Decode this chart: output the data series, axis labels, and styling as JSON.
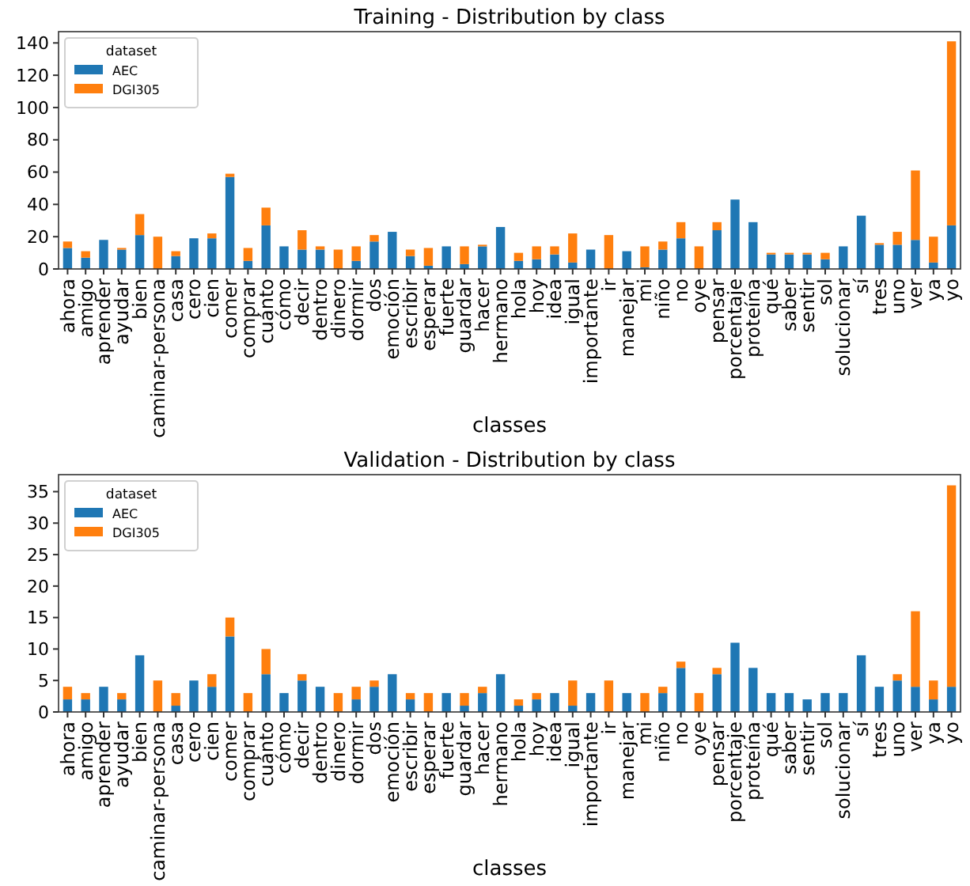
{
  "chart_data": [
    {
      "type": "bar",
      "title": "Training - Distribution by class",
      "xlabel": "classes",
      "legend_title": "dataset",
      "legend": "top left",
      "stacked": true,
      "grid": false,
      "categories": [
        "ahora",
        "amigo",
        "aprender",
        "ayudar",
        "bien",
        "caminar-persona",
        "casa",
        "cero",
        "cien",
        "comer",
        "comprar",
        "cuánto",
        "cómo",
        "decir",
        "dentro",
        "dinero",
        "dormir",
        "dos",
        "emoción",
        "escribir",
        "esperar",
        "fuerte",
        "guardar",
        "hacer",
        "hermano",
        "hola",
        "hoy",
        "idea",
        "igual",
        "importante",
        "ir",
        "manejar",
        "mi",
        "niño",
        "no",
        "oye",
        "pensar",
        "porcentaje",
        "proteína",
        "qué",
        "saber",
        "sentir",
        "sol",
        "solucionar",
        "sí",
        "tres",
        "uno",
        "ver",
        "ya",
        "yo"
      ],
      "series": [
        {
          "name": "AEC",
          "color": "#1f77b4",
          "values": [
            13,
            7,
            18,
            12,
            21,
            0,
            8,
            19,
            19,
            57,
            5,
            27,
            14,
            12,
            12,
            0,
            5,
            17,
            23,
            8,
            2,
            14,
            3,
            14,
            26,
            5,
            6,
            9,
            4,
            12,
            0,
            11,
            1,
            12,
            19,
            0,
            24,
            43,
            29,
            9,
            9,
            9,
            6,
            14,
            33,
            15,
            15,
            18,
            4,
            27
          ]
        },
        {
          "name": "DGI305",
          "color": "#ff7f0e",
          "values": [
            4,
            4,
            0,
            1,
            13,
            20,
            3,
            0,
            3,
            2,
            8,
            11,
            0,
            12,
            2,
            12,
            9,
            4,
            0,
            4,
            11,
            0,
            11,
            1,
            0,
            5,
            8,
            5,
            18,
            0,
            21,
            0,
            13,
            5,
            10,
            14,
            5,
            0,
            0,
            1,
            1,
            1,
            4,
            0,
            0,
            1,
            8,
            43,
            16,
            114
          ]
        }
      ],
      "ylim": [
        0,
        147
      ],
      "yticks": [
        0,
        20,
        40,
        60,
        80,
        100,
        120,
        140
      ]
    },
    {
      "type": "bar",
      "title": "Validation - Distribution by class",
      "xlabel": "classes",
      "legend_title": "dataset",
      "legend": "top left",
      "stacked": true,
      "grid": false,
      "categories": [
        "ahora",
        "amigo",
        "aprender",
        "ayudar",
        "bien",
        "caminar-persona",
        "casa",
        "cero",
        "cien",
        "comer",
        "comprar",
        "cuánto",
        "cómo",
        "decir",
        "dentro",
        "dinero",
        "dormir",
        "dos",
        "emoción",
        "escribir",
        "esperar",
        "fuerte",
        "guardar",
        "hacer",
        "hermano",
        "hola",
        "hoy",
        "idea",
        "igual",
        "importante",
        "ir",
        "manejar",
        "mi",
        "niño",
        "no",
        "oye",
        "pensar",
        "porcentaje",
        "proteína",
        "qué",
        "saber",
        "sentir",
        "sol",
        "solucionar",
        "sí",
        "tres",
        "uno",
        "ver",
        "ya",
        "yo"
      ],
      "series": [
        {
          "name": "AEC",
          "color": "#1f77b4",
          "values": [
            2,
            2,
            4,
            2,
            9,
            0,
            1,
            5,
            4,
            12,
            0,
            6,
            3,
            5,
            4,
            0,
            2,
            4,
            6,
            2,
            0,
            3,
            1,
            3,
            6,
            1,
            2,
            3,
            1,
            3,
            0,
            3,
            0,
            3,
            7,
            0,
            6,
            11,
            7,
            3,
            3,
            2,
            3,
            3,
            9,
            4,
            5,
            4,
            2,
            4
          ]
        },
        {
          "name": "DGI305",
          "color": "#ff7f0e",
          "values": [
            2,
            1,
            0,
            1,
            0,
            5,
            2,
            0,
            2,
            3,
            3,
            4,
            0,
            1,
            0,
            3,
            2,
            1,
            0,
            1,
            3,
            0,
            2,
            1,
            0,
            1,
            1,
            0,
            4,
            0,
            5,
            0,
            3,
            1,
            1,
            3,
            1,
            0,
            0,
            0,
            0,
            0,
            0,
            0,
            0,
            0,
            1,
            12,
            3,
            32
          ]
        }
      ],
      "ylim": [
        0,
        37.7
      ],
      "yticks": [
        0,
        5,
        10,
        15,
        20,
        25,
        30,
        35
      ]
    }
  ]
}
